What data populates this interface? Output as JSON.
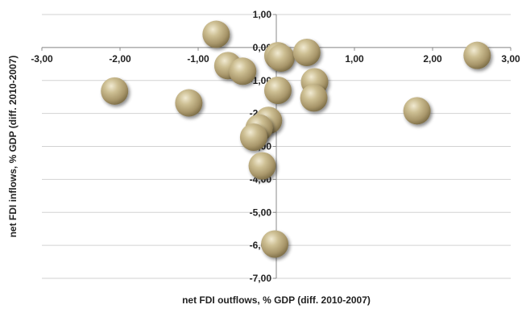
{
  "chart_data": {
    "type": "scatter",
    "title": "",
    "xlabel": "net FDI outflows, % GDP (diff. 2010-2007)",
    "ylabel": "net FDI inflows, % GDP (diff. 2010-2007)",
    "xlim": [
      -3,
      3
    ],
    "ylim": [
      -7,
      1
    ],
    "xticks": [
      "-3,00",
      "-2,00",
      "-1,00",
      "0,00",
      "1,00",
      "2,00",
      "3,00"
    ],
    "yticks": [
      "1,00",
      "0,00",
      "-1,00",
      "-2,00",
      "-3,00",
      "-4,00",
      "-5,00",
      "-6,00",
      "-7,00"
    ],
    "grid": "horizontal",
    "legend": "none",
    "marker_color": "#b5a67c",
    "points": [
      {
        "x": -0.77,
        "y": 0.4
      },
      {
        "x": -0.62,
        "y": -0.55
      },
      {
        "x": -0.43,
        "y": -0.72
      },
      {
        "x": 0.02,
        "y": -0.25
      },
      {
        "x": 0.06,
        "y": -0.32
      },
      {
        "x": 0.39,
        "y": -0.15
      },
      {
        "x": 0.49,
        "y": -1.04
      },
      {
        "x": 0.02,
        "y": -1.3
      },
      {
        "x": 0.48,
        "y": -1.53
      },
      {
        "x": 2.57,
        "y": -0.24
      },
      {
        "x": 1.8,
        "y": -1.92
      },
      {
        "x": -2.07,
        "y": -1.32
      },
      {
        "x": -1.12,
        "y": -1.68
      },
      {
        "x": -0.1,
        "y": -2.21
      },
      {
        "x": -0.22,
        "y": -2.44
      },
      {
        "x": -0.29,
        "y": -2.72
      },
      {
        "x": -0.18,
        "y": -3.59
      },
      {
        "x": -0.02,
        "y": -5.96
      }
    ]
  }
}
